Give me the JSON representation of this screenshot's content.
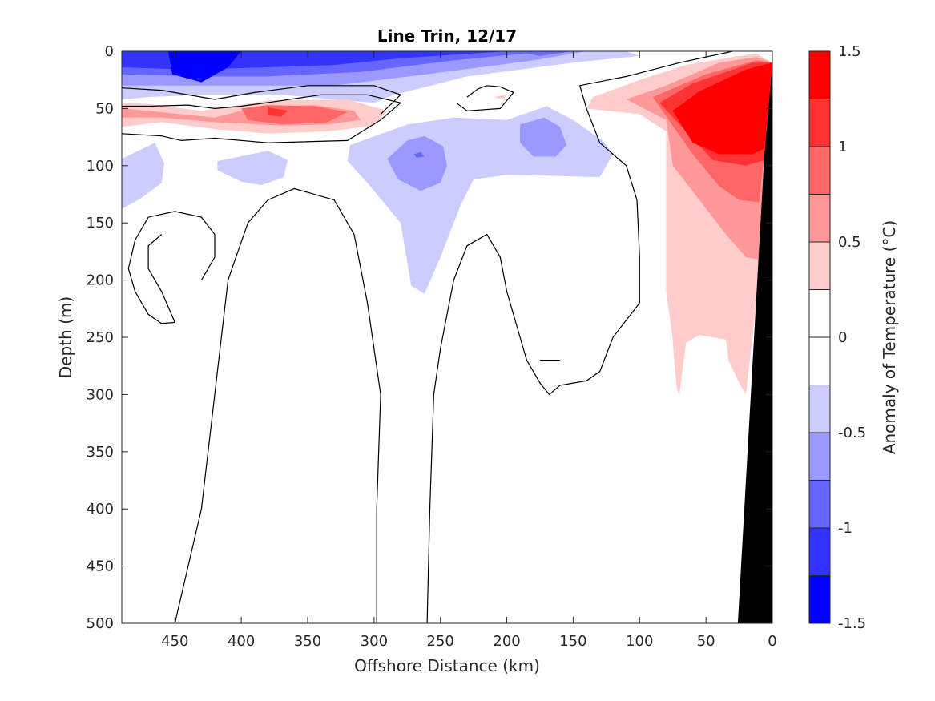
{
  "chart_data": {
    "type": "contour",
    "title": "Line Trin, 12/17",
    "xlabel": "Offshore Distance (km)",
    "ylabel": "Depth (m)",
    "colorbar_label": "Anomaly of Temperature (°C)",
    "x_reversed": true,
    "y_reversed": true,
    "xlim": [
      0,
      490
    ],
    "ylim": [
      0,
      500
    ],
    "x_ticks": [
      450,
      400,
      350,
      300,
      250,
      200,
      150,
      100,
      50,
      0
    ],
    "y_ticks": [
      0,
      50,
      100,
      150,
      200,
      250,
      300,
      350,
      400,
      450,
      500
    ],
    "colorbar": {
      "min": -1.5,
      "max": 1.5,
      "ticks": [
        1.5,
        1,
        0.5,
        0,
        -0.5,
        -1,
        -1.5
      ],
      "levels": [
        {
          "from": 1.25,
          "to": 1.5,
          "color": "#ff0000"
        },
        {
          "from": 1.0,
          "to": 1.25,
          "color": "#ff3333"
        },
        {
          "from": 0.75,
          "to": 1.0,
          "color": "#ff6666"
        },
        {
          "from": 0.5,
          "to": 0.75,
          "color": "#ff9999"
        },
        {
          "from": 0.25,
          "to": 0.5,
          "color": "#ffcccc"
        },
        {
          "from": 0.0,
          "to": 0.25,
          "color": "#ffffff"
        },
        {
          "from": -0.25,
          "to": 0.0,
          "color": "#ffffff"
        },
        {
          "from": -0.5,
          "to": -0.25,
          "color": "#ccccff"
        },
        {
          "from": -0.75,
          "to": -0.5,
          "color": "#9999ff"
        },
        {
          "from": -1.0,
          "to": -0.75,
          "color": "#6666ff"
        },
        {
          "from": -1.25,
          "to": -1.0,
          "color": "#3333ff"
        },
        {
          "from": -1.5,
          "to": -1.25,
          "color": "#0000ff"
        }
      ]
    },
    "bathymetry": [
      [
        0,
        0
      ],
      [
        0,
        500
      ],
      [
        26,
        500
      ],
      [
        6,
        90
      ],
      [
        0,
        10
      ]
    ],
    "regions": [
      {
        "value": -0.375,
        "pts": [
          [
            490,
            0
          ],
          [
            160,
            0
          ],
          [
            110,
            0
          ],
          [
            100,
            4
          ],
          [
            150,
            10
          ],
          [
            230,
            22
          ],
          [
            285,
            38
          ],
          [
            300,
            45
          ],
          [
            370,
            38
          ],
          [
            430,
            38
          ],
          [
            470,
            40
          ],
          [
            490,
            42
          ]
        ]
      },
      {
        "value": -0.625,
        "pts": [
          [
            490,
            0
          ],
          [
            140,
            0
          ],
          [
            180,
            8
          ],
          [
            260,
            20
          ],
          [
            330,
            30
          ],
          [
            390,
            30
          ],
          [
            440,
            30
          ],
          [
            490,
            30
          ]
        ]
      },
      {
        "value": -0.875,
        "pts": [
          [
            490,
            0
          ],
          [
            170,
            0
          ],
          [
            240,
            8
          ],
          [
            310,
            18
          ],
          [
            380,
            22
          ],
          [
            430,
            22
          ],
          [
            490,
            20
          ]
        ]
      },
      {
        "value": -1.125,
        "pts": [
          [
            490,
            0
          ],
          [
            200,
            0
          ],
          [
            280,
            6
          ],
          [
            330,
            12
          ],
          [
            380,
            14
          ],
          [
            440,
            16
          ],
          [
            490,
            14
          ]
        ]
      },
      {
        "value": -1.375,
        "pts": [
          [
            455,
            0
          ],
          [
            400,
            0
          ],
          [
            410,
            14
          ],
          [
            430,
            27
          ],
          [
            452,
            20
          ]
        ]
      },
      {
        "value": -1.125,
        "pts": [
          [
            330,
            0
          ],
          [
            270,
            0
          ],
          [
            300,
            4
          ]
        ]
      },
      {
        "value": -0.875,
        "pts": [
          [
            195,
            0
          ],
          [
            150,
            0
          ],
          [
            175,
            4
          ]
        ]
      },
      {
        "value": -0.375,
        "pts": [
          [
            490,
            94
          ],
          [
            465,
            80
          ],
          [
            458,
            98
          ],
          [
            460,
            115
          ],
          [
            475,
            128
          ],
          [
            490,
            138
          ]
        ]
      },
      {
        "value": -0.375,
        "pts": [
          [
            418,
            96
          ],
          [
            380,
            87
          ],
          [
            365,
            95
          ],
          [
            368,
            110
          ],
          [
            385,
            117
          ],
          [
            400,
            114
          ],
          [
            418,
            104
          ]
        ]
      },
      {
        "value": -0.375,
        "pts": [
          [
            318,
            82
          ],
          [
            275,
            64
          ],
          [
            240,
            58
          ],
          [
            200,
            60
          ],
          [
            170,
            48
          ],
          [
            150,
            60
          ],
          [
            128,
            78
          ],
          [
            120,
            90
          ],
          [
            130,
            110
          ],
          [
            160,
            109
          ],
          [
            200,
            108
          ],
          [
            225,
            112
          ],
          [
            235,
            135
          ],
          [
            250,
            180
          ],
          [
            262,
            212
          ],
          [
            272,
            205
          ],
          [
            280,
            150
          ],
          [
            305,
            115
          ],
          [
            320,
            96
          ]
        ]
      },
      {
        "value": -0.625,
        "pts": [
          [
            290,
            94
          ],
          [
            275,
            78
          ],
          [
            262,
            74
          ],
          [
            248,
            83
          ],
          [
            245,
            100
          ],
          [
            250,
            115
          ],
          [
            265,
            122
          ],
          [
            282,
            112
          ]
        ]
      },
      {
        "value": -0.625,
        "pts": [
          [
            190,
            64
          ],
          [
            172,
            58
          ],
          [
            160,
            66
          ],
          [
            155,
            82
          ],
          [
            163,
            92
          ],
          [
            180,
            92
          ],
          [
            190,
            80
          ]
        ]
      },
      {
        "value": -0.875,
        "pts": [
          [
            270,
            90
          ],
          [
            265,
            88
          ],
          [
            262,
            92
          ],
          [
            268,
            93
          ]
        ]
      },
      {
        "value": 0.375,
        "pts": [
          [
            490,
            45
          ],
          [
            470,
            46
          ],
          [
            430,
            52
          ],
          [
            380,
            43
          ],
          [
            320,
            42
          ],
          [
            290,
            52
          ],
          [
            300,
            65
          ],
          [
            335,
            70
          ],
          [
            380,
            72
          ],
          [
            420,
            68
          ],
          [
            460,
            62
          ],
          [
            490,
            66
          ]
        ]
      },
      {
        "value": 0.625,
        "pts": [
          [
            490,
            50
          ],
          [
            470,
            52
          ],
          [
            420,
            58
          ],
          [
            390,
            49
          ],
          [
            345,
            47
          ],
          [
            315,
            52
          ],
          [
            310,
            60
          ],
          [
            335,
            64
          ],
          [
            370,
            65
          ],
          [
            420,
            62
          ],
          [
            460,
            58
          ],
          [
            490,
            58
          ]
        ]
      },
      {
        "value": 0.875,
        "pts": [
          [
            400,
            50
          ],
          [
            380,
            47
          ],
          [
            345,
            48
          ],
          [
            320,
            53
          ],
          [
            335,
            62
          ],
          [
            370,
            64
          ],
          [
            395,
            60
          ]
        ]
      },
      {
        "value": 1.125,
        "pts": [
          [
            380,
            49
          ],
          [
            365,
            52
          ],
          [
            370,
            57
          ],
          [
            380,
            56
          ]
        ]
      },
      {
        "value": 0.375,
        "pts": [
          [
            210,
            40
          ],
          [
            200,
            38
          ],
          [
            203,
            42
          ]
        ]
      },
      {
        "value": 0.375,
        "pts": [
          [
            0,
            10
          ],
          [
            12,
            2
          ],
          [
            30,
            5
          ],
          [
            65,
            12
          ],
          [
            100,
            25
          ],
          [
            135,
            40
          ],
          [
            140,
            50
          ],
          [
            100,
            55
          ],
          [
            80,
            70
          ],
          [
            80,
            150
          ],
          [
            80,
            210
          ],
          [
            75,
            252
          ],
          [
            74,
            270
          ],
          [
            72,
            295
          ],
          [
            70,
            300
          ],
          [
            65,
            255
          ],
          [
            55,
            248
          ],
          [
            35,
            252
          ],
          [
            33,
            270
          ],
          [
            25,
            290
          ],
          [
            20,
            300
          ],
          [
            8,
            180
          ],
          [
            6,
            90
          ]
        ]
      },
      {
        "value": 0.625,
        "pts": [
          [
            0,
            10
          ],
          [
            12,
            5
          ],
          [
            40,
            10
          ],
          [
            80,
            30
          ],
          [
            110,
            42
          ],
          [
            80,
            60
          ],
          [
            75,
            100
          ],
          [
            55,
            130
          ],
          [
            35,
            160
          ],
          [
            20,
            180
          ],
          [
            10,
            182
          ],
          [
            6,
            90
          ]
        ]
      },
      {
        "value": 0.875,
        "pts": [
          [
            0,
            10
          ],
          [
            12,
            8
          ],
          [
            50,
            20
          ],
          [
            90,
            40
          ],
          [
            78,
            60
          ],
          [
            60,
            90
          ],
          [
            40,
            118
          ],
          [
            25,
            130
          ],
          [
            10,
            132
          ],
          [
            6,
            90
          ]
        ]
      },
      {
        "value": 1.125,
        "pts": [
          [
            0,
            10
          ],
          [
            15,
            10
          ],
          [
            60,
            28
          ],
          [
            85,
            45
          ],
          [
            65,
            70
          ],
          [
            45,
            95
          ],
          [
            20,
            100
          ],
          [
            6,
            95
          ]
        ]
      },
      {
        "value": 1.375,
        "pts": [
          [
            0,
            10
          ],
          [
            20,
            16
          ],
          [
            55,
            35
          ],
          [
            75,
            52
          ],
          [
            60,
            80
          ],
          [
            40,
            90
          ],
          [
            15,
            90
          ],
          [
            6,
            85
          ]
        ]
      }
    ],
    "contours_zero": [
      [
        [
          490,
          48
        ],
        [
          470,
          48
        ],
        [
          440,
          47
        ],
        [
          420,
          50
        ],
        [
          400,
          48
        ],
        [
          375,
          44
        ],
        [
          340,
          38
        ],
        [
          305,
          38
        ],
        [
          280,
          45
        ],
        [
          295,
          60
        ],
        [
          320,
          78
        ],
        [
          380,
          80
        ],
        [
          420,
          76
        ],
        [
          445,
          78
        ],
        [
          460,
          74
        ],
        [
          490,
          72
        ]
      ],
      [
        [
          490,
          32
        ],
        [
          460,
          34
        ],
        [
          420,
          42
        ],
        [
          390,
          36
        ],
        [
          350,
          30
        ],
        [
          300,
          30
        ],
        [
          280,
          38
        ],
        [
          295,
          55
        ]
      ],
      [
        [
          230,
          40
        ],
        [
          222,
          33
        ],
        [
          215,
          30
        ],
        [
          205,
          31
        ],
        [
          195,
          36
        ],
        [
          205,
          50
        ],
        [
          230,
          52
        ],
        [
          238,
          45
        ]
      ],
      [
        [
          30,
          0
        ],
        [
          70,
          10
        ],
        [
          110,
          22
        ],
        [
          145,
          30
        ],
        [
          140,
          50
        ],
        [
          130,
          80
        ],
        [
          110,
          100
        ],
        [
          102,
          130
        ],
        [
          100,
          180
        ],
        [
          100,
          220
        ],
        [
          120,
          250
        ],
        [
          130,
          280
        ],
        [
          140,
          288
        ],
        [
          150,
          290
        ],
        [
          160,
          292
        ],
        [
          168,
          300
        ],
        [
          175,
          290
        ],
        [
          180,
          280
        ],
        [
          185,
          270
        ],
        [
          190,
          250
        ],
        [
          200,
          210
        ],
        [
          205,
          180
        ],
        [
          215,
          160
        ],
        [
          230,
          170
        ],
        [
          240,
          200
        ],
        [
          245,
          230
        ],
        [
          250,
          260
        ],
        [
          255,
          300
        ],
        [
          258,
          400
        ],
        [
          260,
          500
        ]
      ],
      [
        [
          298,
          500
        ],
        [
          298,
          400
        ],
        [
          295,
          300
        ],
        [
          305,
          220
        ],
        [
          315,
          160
        ],
        [
          330,
          130
        ],
        [
          360,
          120
        ],
        [
          380,
          130
        ],
        [
          395,
          150
        ],
        [
          410,
          200
        ],
        [
          415,
          250
        ],
        [
          420,
          300
        ],
        [
          430,
          400
        ],
        [
          450,
          500
        ]
      ],
      [
        [
          460,
          160
        ],
        [
          470,
          170
        ],
        [
          470,
          190
        ],
        [
          460,
          210
        ],
        [
          450,
          237
        ],
        [
          460,
          238
        ],
        [
          470,
          230
        ],
        [
          480,
          210
        ],
        [
          485,
          190
        ],
        [
          480,
          165
        ],
        [
          470,
          145
        ],
        [
          450,
          140
        ],
        [
          430,
          145
        ],
        [
          420,
          160
        ],
        [
          420,
          180
        ],
        [
          430,
          200
        ]
      ],
      [
        [
          175,
          270
        ],
        [
          160,
          270
        ]
      ]
    ]
  }
}
